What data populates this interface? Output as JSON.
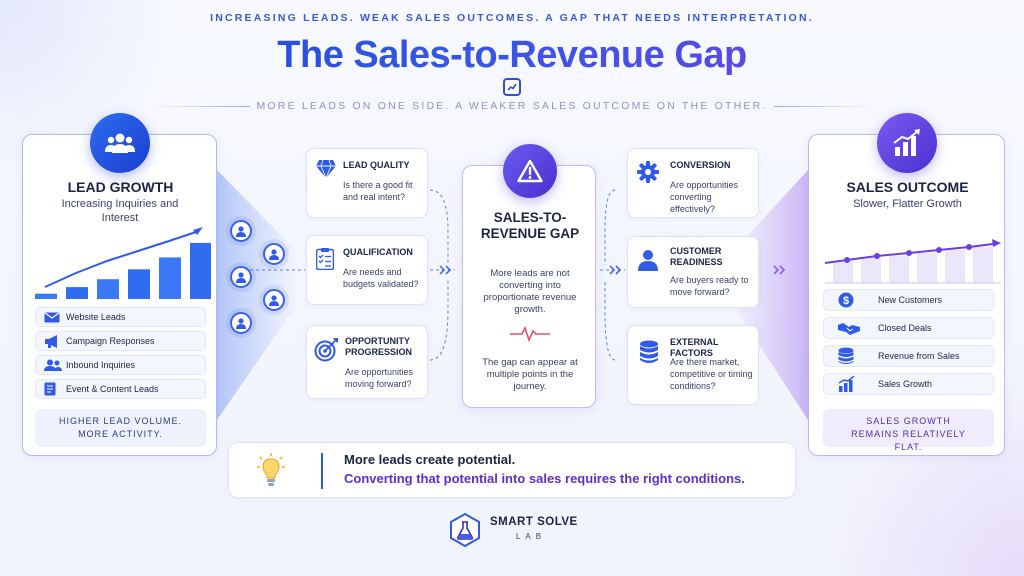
{
  "header": {
    "tagline": "INCREASING LEADS. WEAK SALES OUTCOMES. A GAP THAT NEEDS INTERPRETATION.",
    "title": "The Sales-to-Revenue Gap",
    "subtitle": "MORE LEADS ON ONE SIDE. A WEAKER SALES OUTCOME ON THE OTHER."
  },
  "lead_growth": {
    "icon": "users-icon",
    "title": "LEAD GROWTH",
    "description": "Increasing Inquiries and Interest",
    "bar_levels": [
      0.08,
      0.18,
      0.3,
      0.45,
      0.63,
      0.85
    ],
    "sources": [
      {
        "label": "Website Leads",
        "icon": "mail-icon"
      },
      {
        "label": "Campaign Responses",
        "icon": "megaphone-icon"
      },
      {
        "label": "Inbound Inquiries",
        "icon": "people-icon"
      },
      {
        "label": "Event & Content Leads",
        "icon": "document-icon"
      }
    ],
    "footer": "HIGHER LEAD VOLUME. MORE ACTIVITY."
  },
  "left_cards": [
    {
      "title": "LEAD QUALITY",
      "text": "Is there a good fit and real intent?",
      "icon": "diamond-icon"
    },
    {
      "title": "QUALIFICATION",
      "text": "Are needs and budgets validated?",
      "icon": "checklist-icon"
    },
    {
      "title": "OPPORTUNITY PROGRESSION",
      "text": "Are opportunities moving forward?",
      "icon": "target-icon"
    }
  ],
  "gap": {
    "icon": "warning-icon",
    "title": "SALES-TO-REVENUE GAP",
    "text1": "More leads are not converting into proportionate revenue growth.",
    "text2": "The gap can appear at multiple points in the journey."
  },
  "right_cards": [
    {
      "title": "CONVERSION",
      "text": "Are opportunities converting effectively?",
      "icon": "gear-icon"
    },
    {
      "title": "CUSTOMER READINESS",
      "text": "Are buyers ready to move forward?",
      "icon": "person-icon"
    },
    {
      "title": "EXTERNAL FACTORS",
      "text": "Are there market, competitive or timing conditions?",
      "icon": "database-icon"
    }
  ],
  "sales_outcome": {
    "icon": "bar-growth-icon",
    "title": "SALES OUTCOME",
    "description": "Slower, Flatter Growth",
    "items": [
      {
        "label": "New Customers",
        "icon": "dollar-icon"
      },
      {
        "label": "Closed Deals",
        "icon": "handshake-icon"
      },
      {
        "label": "Revenue from Sales",
        "icon": "coins-icon"
      },
      {
        "label": "Sales Growth",
        "icon": "growth-chart-icon"
      }
    ],
    "footer": "SALES GROWTH REMAINS RELATIVELY FLAT."
  },
  "bottom": {
    "icon": "lightbulb-icon",
    "line1": "More leads create potential.",
    "line2": "Converting that potential into sales requires the right conditions."
  },
  "brand": {
    "icon": "flask-icon",
    "name": "SMART SOLVE",
    "sub": "LAB"
  },
  "colors": {
    "blue": "#2f5be6",
    "purple": "#6a3fe0",
    "navy": "#1b2447"
  }
}
